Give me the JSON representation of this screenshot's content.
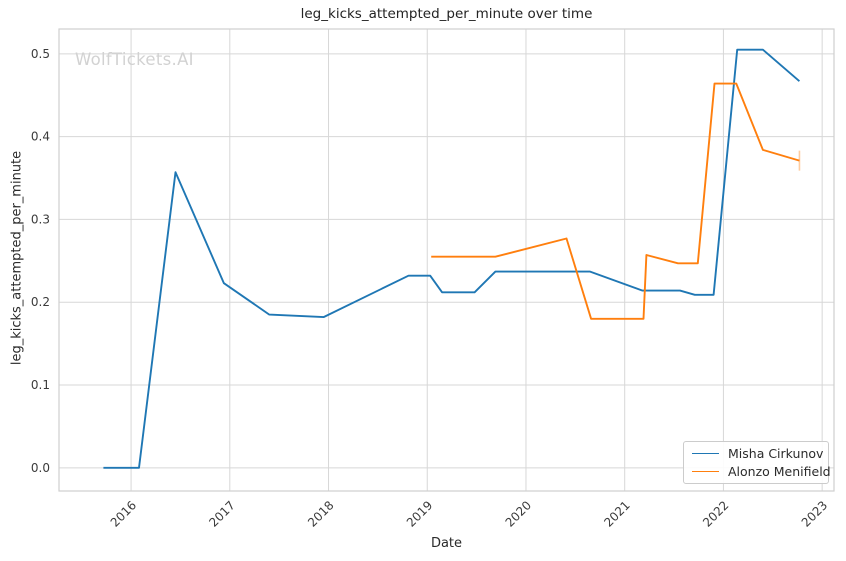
{
  "figure": {
    "title": "leg_kicks_attempted_per_minute over time",
    "watermark": "WolfTickets.AI",
    "xlabel": "Date",
    "ylabel": "leg_kicks_attempted_per_minute"
  },
  "chart_data": {
    "type": "line",
    "title": "leg_kicks_attempted_per_minute over time",
    "xlabel": "Date",
    "ylabel": "leg_kicks_attempted_per_minute",
    "x_unit": "decimal_year",
    "grid": true,
    "legend_position": "lower right",
    "xlim": [
      2015.27,
      2023.12
    ],
    "ylim": [
      -0.028,
      0.53
    ],
    "x_ticks": [
      2016,
      2017,
      2018,
      2019,
      2020,
      2021,
      2022,
      2023
    ],
    "y_ticks": [
      0.0,
      0.1,
      0.2,
      0.3,
      0.4,
      0.5
    ],
    "series": [
      {
        "name": "Misha Cirkunov",
        "color": "#1f77b4",
        "end_cap": false,
        "points": [
          [
            2015.72,
            0.0
          ],
          [
            2016.08,
            0.0
          ],
          [
            2016.45,
            0.357
          ],
          [
            2016.94,
            0.223
          ],
          [
            2017.4,
            0.185
          ],
          [
            2017.95,
            0.182
          ],
          [
            2018.81,
            0.232
          ],
          [
            2019.03,
            0.232
          ],
          [
            2019.15,
            0.212
          ],
          [
            2019.48,
            0.212
          ],
          [
            2019.69,
            0.237
          ],
          [
            2020.65,
            0.237
          ],
          [
            2021.18,
            0.214
          ],
          [
            2021.56,
            0.214
          ],
          [
            2021.71,
            0.209
          ],
          [
            2021.9,
            0.209
          ],
          [
            2022.14,
            0.505
          ],
          [
            2022.4,
            0.505
          ],
          [
            2022.77,
            0.467
          ]
        ]
      },
      {
        "name": "Alonzo Menifield",
        "color": "#ff7f0e",
        "end_cap": true,
        "points": [
          [
            2019.04,
            0.255
          ],
          [
            2019.69,
            0.255
          ],
          [
            2020.41,
            0.277
          ],
          [
            2020.66,
            0.18
          ],
          [
            2021.19,
            0.18
          ],
          [
            2021.22,
            0.257
          ],
          [
            2021.54,
            0.247
          ],
          [
            2021.74,
            0.247
          ],
          [
            2021.91,
            0.464
          ],
          [
            2022.13,
            0.464
          ],
          [
            2022.4,
            0.384
          ],
          [
            2022.77,
            0.371
          ]
        ]
      }
    ]
  },
  "style": {
    "grid_color": "#d7d7d7",
    "spine_color": "#cfcfcf",
    "tick_label_color": "#3b3b3b",
    "line_width": 1.9
  }
}
